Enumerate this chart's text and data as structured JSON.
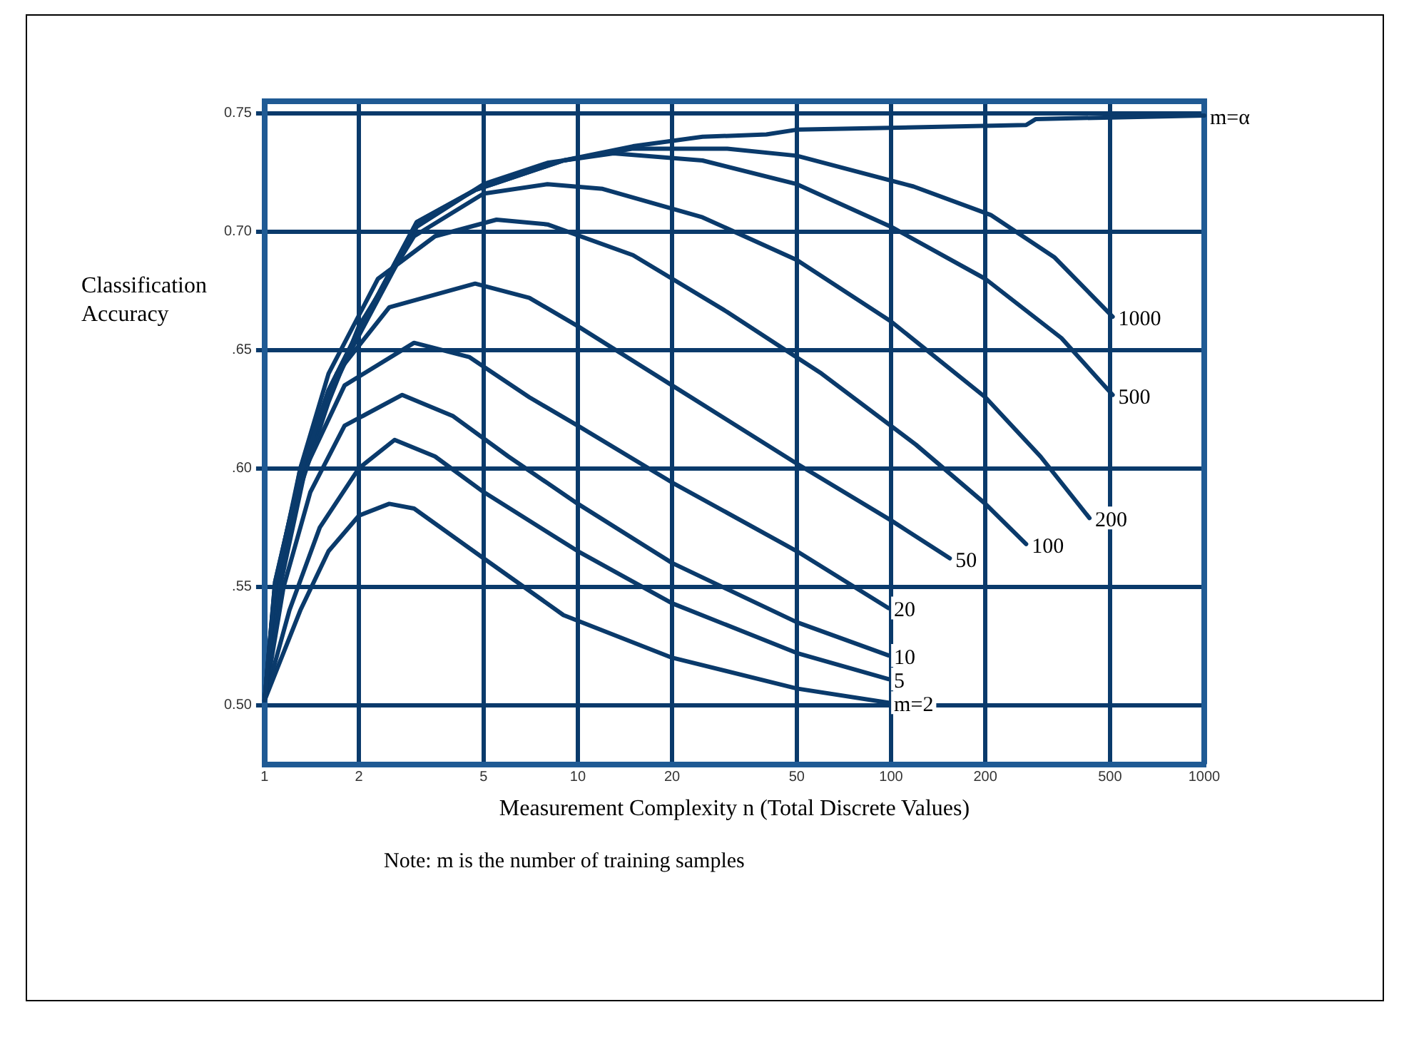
{
  "chart_data": {
    "type": "line",
    "xlabel": "Measurement Complexity n (Total Discrete Values)",
    "ylabel": "Classification Accuracy",
    "annotations": [
      "Note: m is the number of training samples"
    ],
    "log": "x",
    "grid": true,
    "legend": false,
    "marker": "none",
    "line_style": "solid",
    "xlim": [
      1,
      1000
    ],
    "xticks": [
      1,
      2,
      5,
      10,
      20,
      50,
      100,
      200,
      500,
      1000
    ],
    "ylim": [
      0.475,
      0.755
    ],
    "yticks": [
      {
        "value": 0.5,
        "label": "0.50"
      },
      {
        "value": 0.55,
        "label": ".55"
      },
      {
        "value": 0.6,
        "label": ".60"
      },
      {
        "value": 0.65,
        "label": ".65"
      },
      {
        "value": 0.7,
        "label": "0.70"
      },
      {
        "value": 0.75,
        "label": "0.75"
      }
    ],
    "series": [
      {
        "name": "m=α",
        "color": "#0a3a6b",
        "x": [
          1,
          1.08,
          1.29,
          1.6,
          1.89,
          3.06,
          4.7,
          9,
          15,
          25,
          40,
          50,
          270,
          290,
          1000
        ],
        "values": [
          0.502,
          0.552,
          0.596,
          0.633,
          0.652,
          0.704,
          0.7175,
          0.73,
          0.736,
          0.74,
          0.741,
          0.743,
          0.745,
          0.7475,
          0.749
        ]
      },
      {
        "name": "1000",
        "color": "#0a3a6b",
        "x": [
          1,
          1.08,
          1.29,
          1.6,
          1.89,
          3.06,
          4.7,
          9,
          15,
          30,
          50,
          118,
          208,
          333,
          510
        ],
        "values": [
          0.502,
          0.552,
          0.596,
          0.633,
          0.652,
          0.704,
          0.7175,
          0.73,
          0.735,
          0.735,
          0.732,
          0.719,
          0.707,
          0.689,
          0.664
        ]
      },
      {
        "name": "500",
        "color": "#0a3a6b",
        "x": [
          1,
          1.08,
          1.29,
          1.6,
          1.89,
          3.06,
          5,
          8,
          13,
          25,
          50,
          100,
          200,
          350,
          510
        ],
        "values": [
          0.502,
          0.55,
          0.594,
          0.63,
          0.65,
          0.702,
          0.72,
          0.729,
          0.733,
          0.73,
          0.72,
          0.702,
          0.68,
          0.655,
          0.631
        ]
      },
      {
        "name": "200",
        "color": "#0a3a6b",
        "x": [
          1,
          1.08,
          1.3,
          1.6,
          2,
          3,
          5,
          8,
          12,
          25,
          50,
          100,
          200,
          300,
          430
        ],
        "values": [
          0.502,
          0.55,
          0.592,
          0.628,
          0.66,
          0.698,
          0.716,
          0.72,
          0.718,
          0.706,
          0.688,
          0.662,
          0.63,
          0.605,
          0.579
        ]
      },
      {
        "name": "100",
        "color": "#0a3a6b",
        "x": [
          1,
          1.08,
          1.3,
          1.6,
          2.3,
          3.5,
          5.5,
          8,
          15,
          30,
          60,
          120,
          200,
          270
        ],
        "values": [
          0.502,
          0.55,
          0.6,
          0.64,
          0.68,
          0.698,
          0.705,
          0.703,
          0.69,
          0.666,
          0.64,
          0.61,
          0.585,
          0.568
        ]
      },
      {
        "name": "50",
        "color": "#0a3a6b",
        "x": [
          1,
          1.1,
          1.3,
          1.7,
          2.5,
          4.7,
          7,
          10,
          20,
          50,
          100,
          154
        ],
        "values": [
          0.502,
          0.55,
          0.6,
          0.64,
          0.668,
          0.678,
          0.672,
          0.66,
          0.635,
          0.602,
          0.578,
          0.562
        ]
      },
      {
        "name": "20",
        "color": "#0a3a6b",
        "x": [
          1,
          1.12,
          1.35,
          1.8,
          3,
          4.5,
          7,
          10,
          20,
          50,
          98
        ],
        "values": [
          0.502,
          0.55,
          0.6,
          0.635,
          0.653,
          0.647,
          0.63,
          0.618,
          0.594,
          0.565,
          0.541
        ]
      },
      {
        "name": "10",
        "color": "#0a3a6b",
        "x": [
          1,
          1.15,
          1.4,
          1.8,
          2.75,
          4,
          6,
          10,
          20,
          50,
          98
        ],
        "values": [
          0.502,
          0.55,
          0.59,
          0.618,
          0.631,
          0.622,
          0.605,
          0.585,
          0.56,
          0.535,
          0.521
        ]
      },
      {
        "name": "5",
        "color": "#0a3a6b",
        "x": [
          1,
          1.2,
          1.5,
          2,
          2.6,
          3.5,
          5,
          10,
          20,
          50,
          98
        ],
        "values": [
          0.502,
          0.54,
          0.575,
          0.6,
          0.612,
          0.605,
          0.59,
          0.565,
          0.543,
          0.522,
          0.511
        ]
      },
      {
        "name": "m=2",
        "color": "#0a3a6b",
        "x": [
          1,
          1.3,
          1.6,
          2,
          2.5,
          3,
          5,
          9,
          20,
          50,
          98
        ],
        "values": [
          0.502,
          0.54,
          0.565,
          0.58,
          0.585,
          0.583,
          0.562,
          0.538,
          0.52,
          0.507,
          0.501
        ]
      }
    ]
  }
}
